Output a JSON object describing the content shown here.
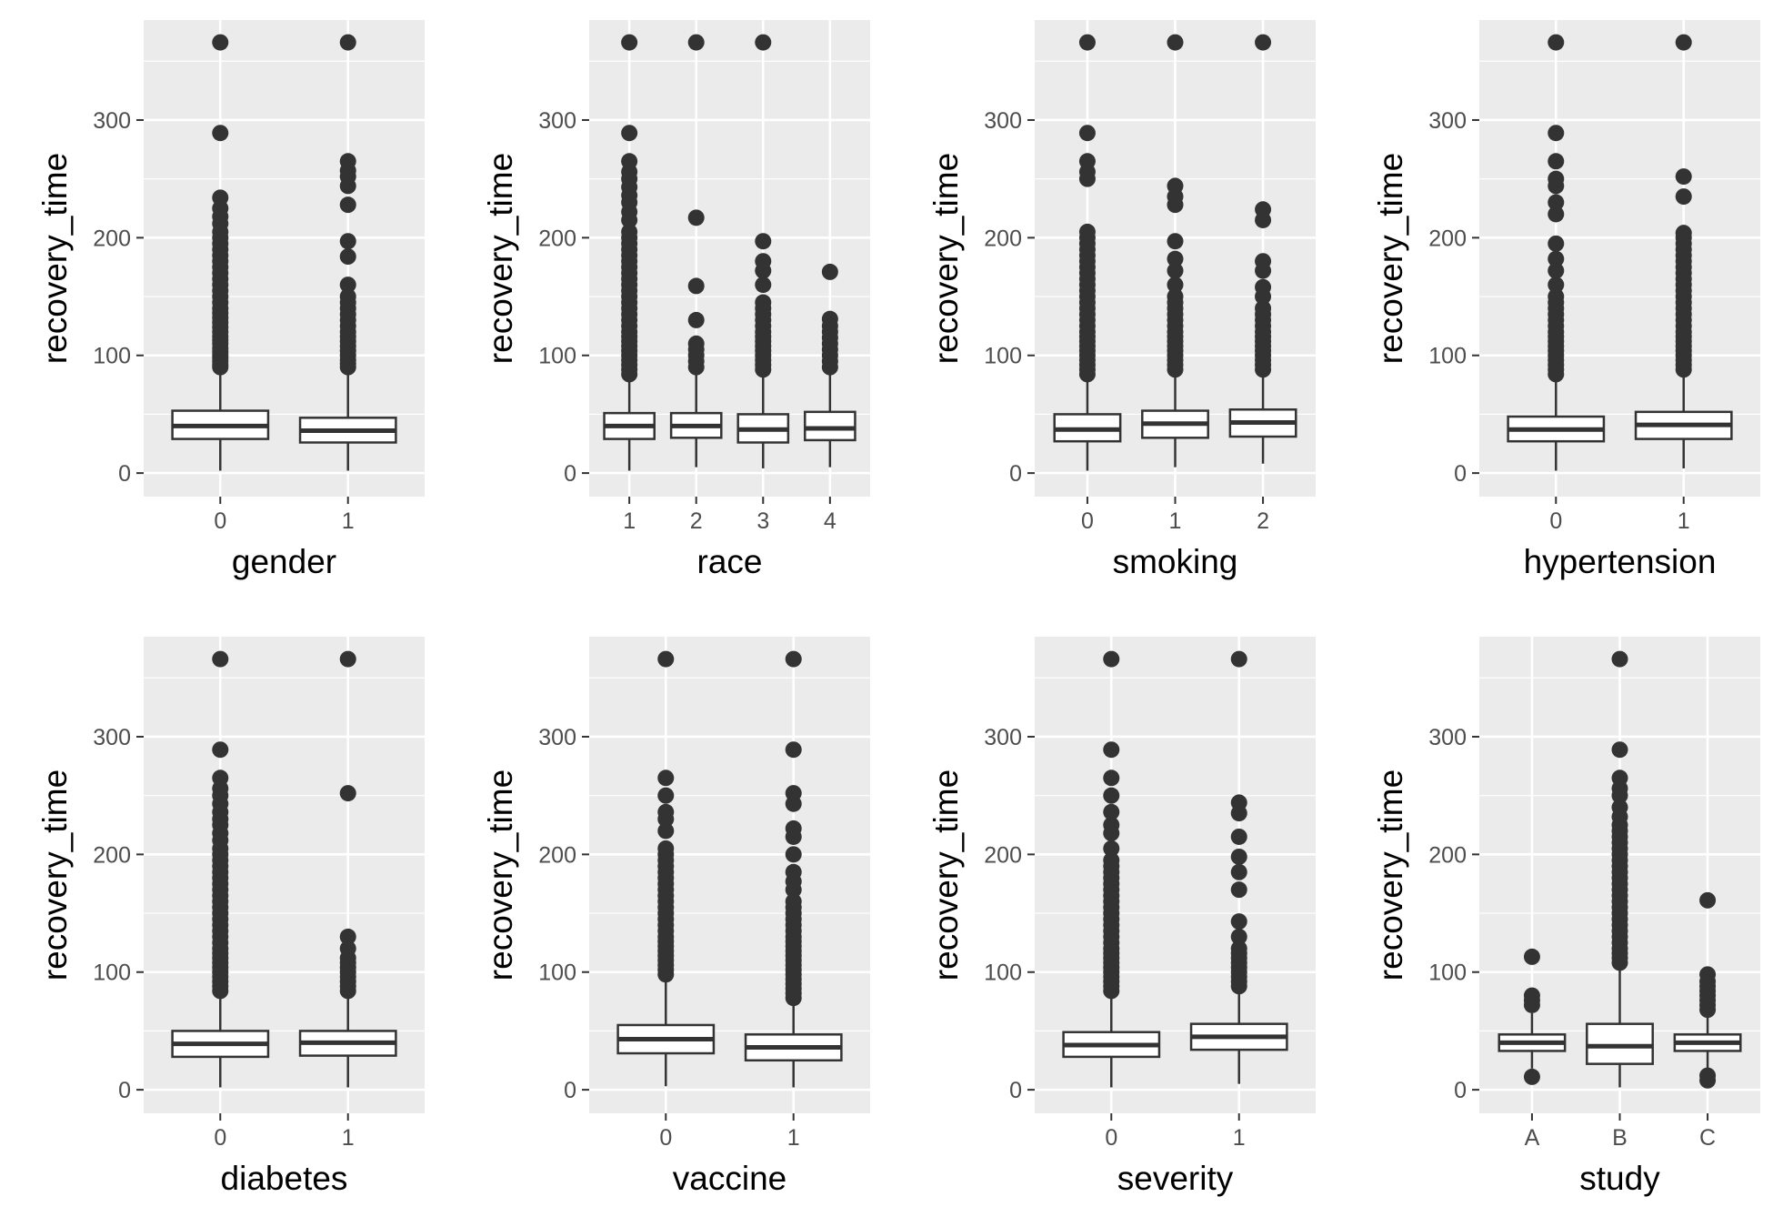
{
  "y_axis_label": "recovery_time",
  "y_ticks": [
    0,
    100,
    200,
    300
  ],
  "colors": {
    "panel": "#ebebeb",
    "grid": "#ffffff",
    "box": "#333333",
    "tick_text": "#4d4d4d"
  },
  "chart_data": [
    {
      "type": "box",
      "xlabel": "gender",
      "ylabel": "recovery_time",
      "ylim": [
        -20,
        385
      ],
      "grid": true,
      "categories": [
        "0",
        "1"
      ],
      "boxes": [
        {
          "min": 2,
          "q1": 29,
          "median": 40,
          "q3": 53,
          "max": 88,
          "outliers": [
            90,
            92,
            95,
            98,
            100,
            103,
            106,
            110,
            113,
            116,
            120,
            124,
            128,
            132,
            136,
            140,
            145,
            150,
            155,
            160,
            165,
            170,
            175,
            180,
            185,
            190,
            195,
            200,
            205,
            212,
            218,
            225,
            234,
            289,
            366
          ]
        },
        {
          "min": 2,
          "q1": 26,
          "median": 36,
          "q3": 47,
          "max": 88,
          "outliers": [
            90,
            93,
            96,
            100,
            104,
            108,
            112,
            116,
            120,
            125,
            130,
            135,
            140,
            145,
            150,
            160,
            184,
            197,
            228,
            244,
            252,
            257,
            265,
            366
          ]
        }
      ]
    },
    {
      "type": "box",
      "xlabel": "race",
      "ylabel": "recovery_time",
      "ylim": [
        -20,
        385
      ],
      "grid": true,
      "categories": [
        "1",
        "2",
        "3",
        "4"
      ],
      "boxes": [
        {
          "min": 2,
          "q1": 29,
          "median": 40,
          "q3": 51,
          "max": 80,
          "outliers": [
            84,
            88,
            92,
            96,
            100,
            104,
            108,
            112,
            116,
            120,
            125,
            130,
            135,
            140,
            145,
            150,
            155,
            160,
            165,
            170,
            175,
            180,
            185,
            190,
            195,
            200,
            205,
            215,
            222,
            230,
            236,
            243,
            250,
            256,
            265,
            289,
            366
          ]
        },
        {
          "min": 5,
          "q1": 30,
          "median": 40,
          "q3": 51,
          "max": 85,
          "outliers": [
            90,
            95,
            100,
            105,
            110,
            130,
            159,
            217,
            366
          ]
        },
        {
          "min": 4,
          "q1": 26,
          "median": 37,
          "q3": 50,
          "max": 85,
          "outliers": [
            88,
            92,
            96,
            100,
            104,
            108,
            112,
            116,
            120,
            125,
            130,
            135,
            140,
            145,
            160,
            172,
            180,
            197,
            366
          ]
        },
        {
          "min": 5,
          "q1": 28,
          "median": 38,
          "q3": 52,
          "max": 88,
          "outliers": [
            90,
            95,
            100,
            105,
            110,
            115,
            120,
            125,
            131,
            171
          ]
        }
      ]
    },
    {
      "type": "box",
      "xlabel": "smoking",
      "ylabel": "recovery_time",
      "ylim": [
        -20,
        385
      ],
      "grid": true,
      "categories": [
        "0",
        "1",
        "2"
      ],
      "boxes": [
        {
          "min": 2,
          "q1": 27,
          "median": 37,
          "q3": 50,
          "max": 80,
          "outliers": [
            84,
            88,
            92,
            96,
            100,
            104,
            108,
            112,
            116,
            120,
            125,
            130,
            135,
            140,
            145,
            150,
            155,
            160,
            165,
            170,
            175,
            180,
            185,
            190,
            195,
            200,
            205,
            250,
            256,
            265,
            289,
            366
          ]
        },
        {
          "min": 5,
          "q1": 30,
          "median": 42,
          "q3": 53,
          "max": 85,
          "outliers": [
            88,
            92,
            96,
            100,
            104,
            108,
            112,
            116,
            120,
            125,
            130,
            135,
            140,
            145,
            150,
            160,
            172,
            182,
            197,
            228,
            235,
            244,
            366
          ]
        },
        {
          "min": 8,
          "q1": 31,
          "median": 43,
          "q3": 54,
          "max": 85,
          "outliers": [
            88,
            92,
            96,
            100,
            104,
            108,
            112,
            116,
            120,
            125,
            130,
            135,
            140,
            150,
            158,
            172,
            180,
            215,
            224,
            366
          ]
        }
      ]
    },
    {
      "type": "box",
      "xlabel": "hypertension",
      "ylabel": "recovery_time",
      "ylim": [
        -20,
        385
      ],
      "grid": true,
      "categories": [
        "0",
        "1"
      ],
      "boxes": [
        {
          "min": 2,
          "q1": 27,
          "median": 37,
          "q3": 48,
          "max": 80,
          "outliers": [
            84,
            88,
            92,
            96,
            100,
            104,
            108,
            112,
            116,
            120,
            125,
            130,
            135,
            140,
            145,
            150,
            160,
            172,
            182,
            195,
            220,
            230,
            244,
            250,
            265,
            289,
            366
          ]
        },
        {
          "min": 4,
          "q1": 29,
          "median": 41,
          "q3": 52,
          "max": 85,
          "outliers": [
            88,
            92,
            96,
            100,
            104,
            108,
            112,
            116,
            120,
            125,
            130,
            135,
            140,
            145,
            150,
            155,
            160,
            165,
            170,
            175,
            180,
            185,
            190,
            195,
            200,
            204,
            235,
            252,
            366
          ]
        }
      ]
    },
    {
      "type": "box",
      "xlabel": "diabetes",
      "ylabel": "recovery_time",
      "ylim": [
        -20,
        385
      ],
      "grid": true,
      "categories": [
        "0",
        "1"
      ],
      "boxes": [
        {
          "min": 2,
          "q1": 28,
          "median": 39,
          "q3": 50,
          "max": 80,
          "outliers": [
            84,
            88,
            92,
            96,
            100,
            104,
            108,
            112,
            116,
            120,
            125,
            130,
            135,
            140,
            145,
            150,
            155,
            160,
            165,
            170,
            175,
            180,
            185,
            190,
            195,
            200,
            205,
            212,
            218,
            225,
            230,
            236,
            243,
            250,
            256,
            265,
            289,
            366
          ]
        },
        {
          "min": 2,
          "q1": 29,
          "median": 40,
          "q3": 50,
          "max": 80,
          "outliers": [
            84,
            88,
            92,
            96,
            100,
            104,
            108,
            112,
            120,
            130,
            252,
            366
          ]
        }
      ]
    },
    {
      "type": "box",
      "xlabel": "vaccine",
      "ylabel": "recovery_time",
      "ylim": [
        -20,
        385
      ],
      "grid": true,
      "categories": [
        "0",
        "1"
      ],
      "boxes": [
        {
          "min": 3,
          "q1": 31,
          "median": 43,
          "q3": 55,
          "max": 95,
          "outliers": [
            98,
            102,
            106,
            110,
            114,
            118,
            122,
            126,
            130,
            135,
            140,
            145,
            150,
            155,
            160,
            165,
            170,
            175,
            180,
            185,
            190,
            195,
            200,
            205,
            220,
            230,
            236,
            250,
            265,
            366
          ]
        },
        {
          "min": 2,
          "q1": 25,
          "median": 36,
          "q3": 47,
          "max": 75,
          "outliers": [
            78,
            82,
            86,
            90,
            94,
            98,
            102,
            106,
            110,
            114,
            118,
            122,
            126,
            130,
            135,
            140,
            145,
            150,
            155,
            160,
            170,
            177,
            185,
            200,
            215,
            222,
            243,
            252,
            289,
            366
          ]
        }
      ]
    },
    {
      "type": "box",
      "xlabel": "severity",
      "ylabel": "recovery_time",
      "ylim": [
        -20,
        385
      ],
      "grid": true,
      "categories": [
        "0",
        "1"
      ],
      "boxes": [
        {
          "min": 2,
          "q1": 28,
          "median": 38,
          "q3": 49,
          "max": 80,
          "outliers": [
            84,
            88,
            92,
            96,
            100,
            104,
            108,
            112,
            116,
            120,
            125,
            130,
            135,
            140,
            145,
            150,
            155,
            160,
            165,
            170,
            175,
            180,
            185,
            190,
            195,
            205,
            218,
            225,
            236,
            250,
            265,
            289,
            366
          ]
        },
        {
          "min": 5,
          "q1": 34,
          "median": 45,
          "q3": 56,
          "max": 85,
          "outliers": [
            88,
            92,
            96,
            100,
            104,
            108,
            112,
            116,
            120,
            130,
            143,
            170,
            185,
            198,
            215,
            235,
            244,
            366
          ]
        }
      ]
    },
    {
      "type": "box",
      "xlabel": "study",
      "ylabel": "recovery_time",
      "ylim": [
        -20,
        385
      ],
      "grid": true,
      "categories": [
        "A",
        "B",
        "C"
      ],
      "boxes": [
        {
          "min": 18,
          "q1": 33,
          "median": 40,
          "q3": 47,
          "max": 65,
          "outliers": [
            11,
            72,
            76,
            80,
            113
          ]
        },
        {
          "min": 2,
          "q1": 22,
          "median": 37,
          "q3": 56,
          "max": 105,
          "outliers": [
            108,
            112,
            116,
            120,
            125,
            130,
            135,
            140,
            145,
            150,
            155,
            160,
            165,
            170,
            175,
            180,
            185,
            190,
            195,
            200,
            205,
            210,
            215,
            220,
            225,
            232,
            240,
            250,
            256,
            265,
            289,
            366
          ]
        },
        {
          "min": 16,
          "q1": 33,
          "median": 40,
          "q3": 47,
          "max": 65,
          "outliers": [
            8,
            12,
            68,
            72,
            76,
            80,
            84,
            88,
            92,
            98,
            161
          ]
        }
      ]
    }
  ]
}
